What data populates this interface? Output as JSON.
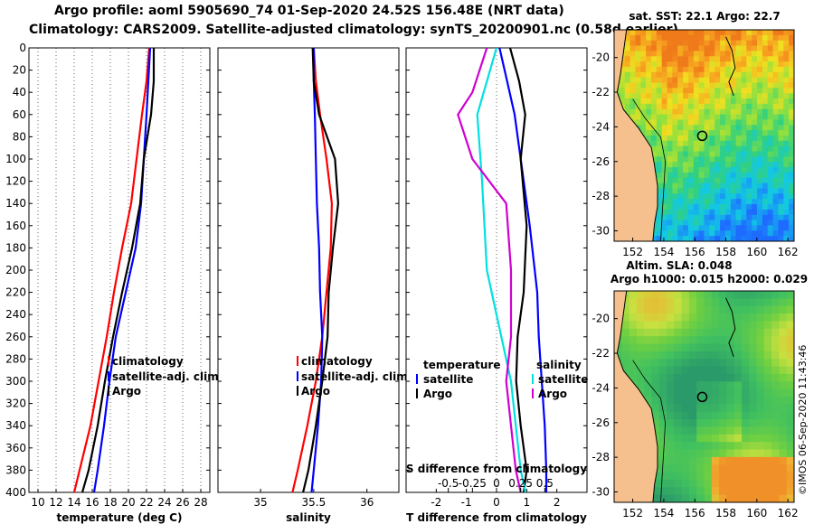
{
  "title_line1": "Argo profile: aoml 5905690_74 01-Sep-2020 24.52S 156.48E (NRT data)",
  "title_line2": "Climatology: CARS2009. Satellite-adjusted climatology: synTS_20200901.nc (0.58d earlier)",
  "colors": {
    "climatology": "#ff0000",
    "satellite": "#0000ff",
    "argo": "#000000",
    "t_diff": "#000000",
    "s_sat": "#00e0e0",
    "s_diff": "#d000d0",
    "coast": "#000000",
    "land": "#f5c08e"
  },
  "chart_data": [
    {
      "type": "line",
      "name": "temperature-panel",
      "xlabel": "temperature (deg C)",
      "ylim": [
        0,
        400
      ],
      "xlim": [
        9,
        29
      ],
      "xticks": [
        10,
        12,
        14,
        16,
        18,
        20,
        22,
        24,
        26,
        28
      ],
      "yticks": [
        0,
        20,
        40,
        60,
        80,
        100,
        120,
        140,
        160,
        180,
        200,
        220,
        240,
        260,
        280,
        300,
        320,
        340,
        360,
        380,
        400
      ],
      "legend": [
        "climatology",
        "satellite-adj. clim.",
        "Argo"
      ],
      "series": [
        {
          "name": "climatology",
          "color": "#ff0000",
          "depth": [
            0,
            30,
            60,
            100,
            140,
            180,
            220,
            260,
            300,
            340,
            380,
            400
          ],
          "values": [
            22.3,
            22,
            21.5,
            20.9,
            20.3,
            19.3,
            18.4,
            17.6,
            16.7,
            15.8,
            14.6,
            14
          ]
        },
        {
          "name": "satellite-adj. clim.",
          "color": "#0000ff",
          "depth": [
            0,
            30,
            60,
            100,
            140,
            180,
            220,
            260,
            300,
            340,
            380,
            400
          ],
          "values": [
            22.4,
            22.2,
            22,
            21.7,
            21.4,
            20.8,
            19.7,
            18.6,
            17.9,
            17.3,
            16.6,
            16.2
          ]
        },
        {
          "name": "Argo",
          "color": "#000000",
          "depth": [
            0,
            30,
            60,
            100,
            140,
            180,
            220,
            260,
            300,
            340,
            380,
            400
          ],
          "values": [
            22.8,
            22.8,
            22.5,
            21.7,
            21.3,
            20.4,
            19.3,
            18.3,
            17.4,
            16.6,
            15.6,
            14.9
          ]
        }
      ]
    },
    {
      "type": "line",
      "name": "salinity-panel",
      "xlabel": "salinity",
      "ylim": [
        0,
        400
      ],
      "xlim": [
        34.6,
        36.3
      ],
      "xticks": [
        35,
        35.5,
        36
      ],
      "legend": [
        "climatology",
        "satellite-adj. clim.",
        "Argo"
      ],
      "series": [
        {
          "name": "climatology",
          "color": "#ff0000",
          "depth": [
            0,
            30,
            60,
            100,
            140,
            180,
            220,
            260,
            300,
            340,
            380,
            400
          ],
          "values": [
            35.5,
            35.52,
            35.56,
            35.62,
            35.67,
            35.66,
            35.62,
            35.58,
            35.52,
            35.44,
            35.35,
            35.3
          ]
        },
        {
          "name": "satellite-adj. clim.",
          "color": "#0000ff",
          "depth": [
            0,
            30,
            60,
            100,
            140,
            180,
            220,
            260,
            300,
            340,
            380,
            400
          ],
          "values": [
            35.5,
            35.5,
            35.51,
            35.52,
            35.53,
            35.55,
            35.56,
            35.58,
            35.57,
            35.54,
            35.5,
            35.48
          ]
        },
        {
          "name": "Argo",
          "color": "#000000",
          "depth": [
            0,
            30,
            60,
            100,
            140,
            180,
            220,
            260,
            300,
            340,
            380,
            400
          ],
          "values": [
            35.49,
            35.5,
            35.55,
            35.7,
            35.73,
            35.68,
            35.64,
            35.63,
            35.58,
            35.52,
            35.45,
            35.4
          ]
        }
      ]
    },
    {
      "type": "line",
      "name": "difference-panel",
      "xlabel": "T difference from climatology",
      "ylim": [
        0,
        400
      ],
      "xlim": [
        -3,
        3
      ],
      "xticks": [
        -2,
        -1,
        0,
        1,
        2
      ],
      "top_xlabel": "S difference from climatology",
      "top_xticks": [
        -0.5,
        -0.25,
        0,
        0.25,
        0.5
      ],
      "legend_titles": [
        "temperature",
        "salinity"
      ],
      "legend_temperature": [
        "satellite",
        "Argo"
      ],
      "legend_salinity": [
        "satellite",
        "Argo"
      ],
      "series": [
        {
          "name": "T satellite",
          "color": "#0000ff",
          "depth": [
            0,
            30,
            60,
            100,
            160,
            220,
            260,
            300,
            340,
            380,
            400
          ],
          "values": [
            0.1,
            0.35,
            0.6,
            0.8,
            1.1,
            1.35,
            1.4,
            1.5,
            1.6,
            1.65,
            1.65
          ]
        },
        {
          "name": "T Argo",
          "color": "#000000",
          "depth": [
            0,
            30,
            60,
            100,
            160,
            220,
            260,
            300,
            340,
            380,
            400
          ],
          "values": [
            0.45,
            0.75,
            0.95,
            0.8,
            1,
            0.9,
            0.7,
            0.65,
            0.8,
            1,
            0.9
          ]
        },
        {
          "name": "S satellite",
          "color": "#00e0e0",
          "depth": [
            0,
            60,
            120,
            200,
            260,
            300,
            340,
            380,
            400
          ],
          "values": [
            0,
            -0.2,
            -0.15,
            -0.1,
            0.05,
            0.15,
            0.2,
            0.25,
            0.3
          ]
        },
        {
          "name": "S Argo",
          "color": "#d000d0",
          "depth": [
            0,
            40,
            60,
            100,
            140,
            200,
            260,
            300,
            340,
            380,
            400
          ],
          "values": [
            -0.1,
            -0.25,
            -0.4,
            -0.25,
            0.1,
            0.15,
            0.15,
            0.1,
            0.15,
            0.2,
            0.25
          ]
        }
      ]
    },
    {
      "type": "heatmap",
      "name": "sst-map",
      "title": "sat. SST: 22.1 Argo: 22.7",
      "xticks": [
        152,
        154,
        156,
        158,
        160,
        162
      ],
      "yticks": [
        -20,
        -22,
        -24,
        -26,
        -28,
        -30
      ],
      "xlim": [
        150.8,
        162.4
      ],
      "ylim": [
        -30.6,
        -18.4
      ],
      "float_position": [
        156.48,
        -24.52
      ]
    },
    {
      "type": "heatmap",
      "name": "sla-map",
      "title": "Altim. SLA: 0.048",
      "subtitle": "Argo h1000: 0.015 h2000: 0.029",
      "xticks": [
        152,
        154,
        156,
        158,
        160,
        162
      ],
      "yticks": [
        -20,
        -22,
        -24,
        -26,
        -28,
        -30
      ],
      "xlim": [
        150.8,
        162.4
      ],
      "ylim": [
        -30.6,
        -18.4
      ],
      "float_position": [
        156.48,
        -24.52
      ]
    }
  ],
  "stamp": "©IMOS 06-Sep-2020 11:43:46"
}
